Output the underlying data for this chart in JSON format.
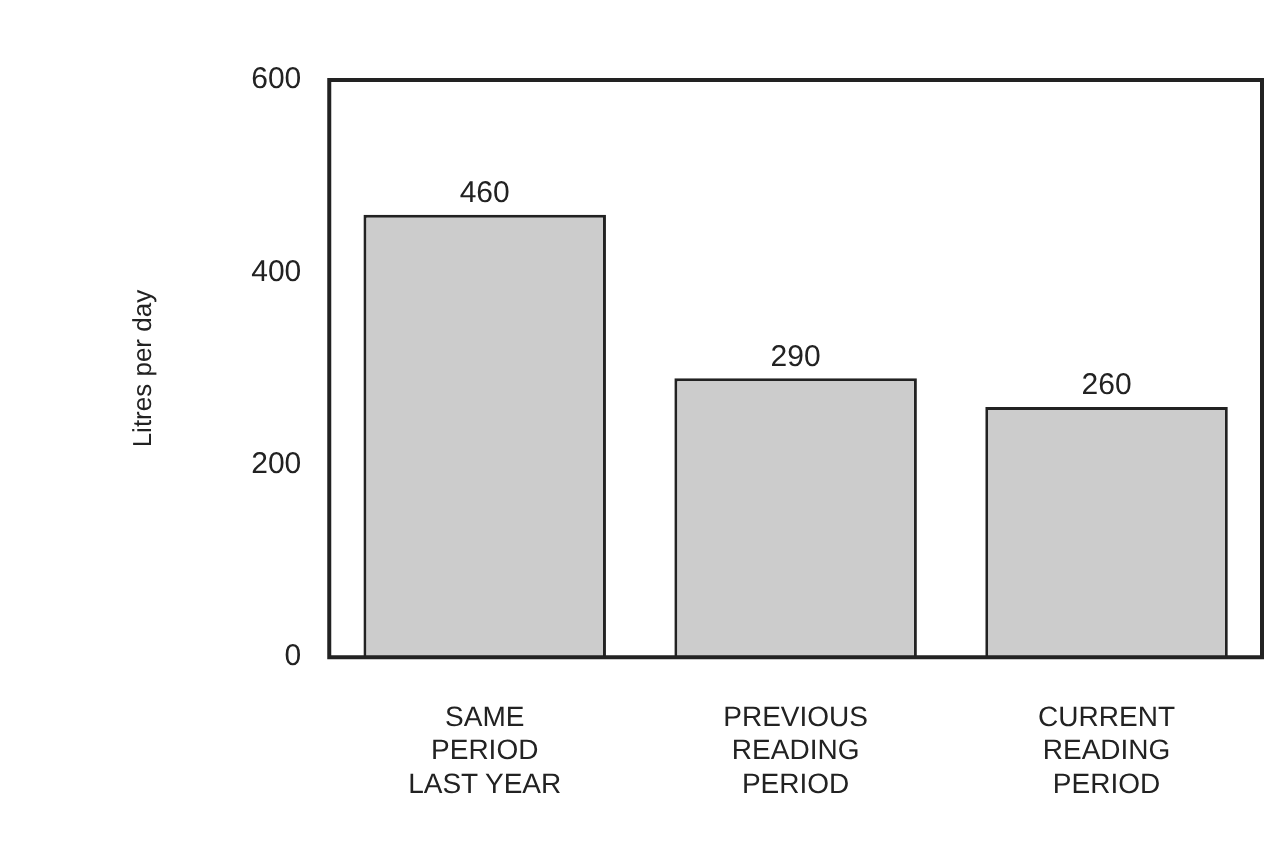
{
  "chart_data": {
    "type": "bar",
    "ylabel": "Litres per day",
    "categories": [
      "SAME\nPERIOD\nLAST YEAR",
      "PREVIOUS\nREADING\nPERIOD",
      "CURRENT\nREADING\nPERIOD"
    ],
    "values": [
      460,
      290,
      260
    ],
    "color": "#cccccc",
    "ylim": [
      0,
      600
    ],
    "yticks": [
      0,
      200,
      400,
      600
    ],
    "grid": false,
    "legend": false,
    "data_labels": true
  }
}
